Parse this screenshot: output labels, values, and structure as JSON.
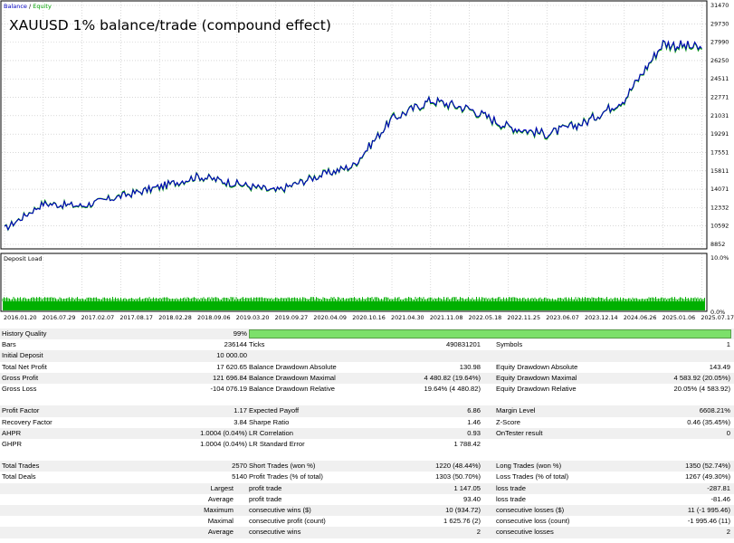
{
  "chart": {
    "legend_balance": "Balance",
    "legend_sep": " / ",
    "legend_equity": "Equity",
    "title": "XAUUSD 1% balance/trade (compound effect)",
    "y_ticks": [
      "31470",
      "29730",
      "27990",
      "26250",
      "24511",
      "22771",
      "21031",
      "19291",
      "17551",
      "15811",
      "14071",
      "12332",
      "10592",
      "8852"
    ],
    "deposit_title": "Deposit Load",
    "deposit_ticks": [
      "10.0%",
      "0.0%"
    ],
    "x_ticks": [
      "2016.01.20",
      "2016.07.29",
      "2017.02.07",
      "2017.08.17",
      "2018.02.28",
      "2018.09.06",
      "2019.03.20",
      "2019.09.27",
      "2020.04.09",
      "2020.10.16",
      "2021.04.30",
      "2021.11.08",
      "2022.05.18",
      "2022.11.25",
      "2023.06.07",
      "2023.12.14",
      "2024.06.26",
      "2025.01.06",
      "2025.07.17"
    ],
    "colors": {
      "balance": "#0000c0",
      "equity": "#00a000",
      "load": "#00b000",
      "grid": "#c0c0c0"
    }
  },
  "chart_data": {
    "type": "line",
    "ylim": [
      8852,
      31470
    ],
    "x": [
      "2016.01.20",
      "2016.07.29",
      "2017.02.07",
      "2017.08.17",
      "2018.02.28",
      "2018.09.06",
      "2019.03.20",
      "2019.09.27",
      "2020.04.09",
      "2020.10.16",
      "2021.04.30",
      "2021.11.08",
      "2022.05.18",
      "2022.11.25",
      "2023.06.07",
      "2023.12.14",
      "2024.06.26",
      "2025.01.06",
      "2025.07.17"
    ],
    "series": [
      {
        "name": "Balance",
        "values": [
          10300,
          12700,
          12500,
          13400,
          14300,
          15300,
          14600,
          13900,
          15200,
          16300,
          20700,
          22500,
          21700,
          20000,
          19300,
          20400,
          22600,
          27900,
          27400
        ]
      },
      {
        "name": "Equity",
        "values": [
          10300,
          12750,
          12450,
          13450,
          14250,
          15300,
          14550,
          13850,
          15250,
          16250,
          20750,
          22450,
          21650,
          19950,
          19250,
          20450,
          22550,
          27850,
          27300
        ]
      }
    ]
  },
  "report": {
    "history_quality_label": "History Quality",
    "history_quality_value": "99%",
    "bars_label": "Bars",
    "bars_value": "236144",
    "ticks_label": "Ticks",
    "ticks_value": "490831201",
    "symbols_label": "Symbols",
    "symbols_value": "1",
    "initial_deposit_label": "Initial Deposit",
    "initial_deposit_value": "10 000.00",
    "total_net_profit_label": "Total Net Profit",
    "total_net_profit_value": "17 620.65",
    "bal_dd_abs_label": "Balance Drawdown Absolute",
    "bal_dd_abs_value": "130.98",
    "eq_dd_abs_label": "Equity Drawdown Absolute",
    "eq_dd_abs_value": "143.49",
    "gross_profit_label": "Gross Profit",
    "gross_profit_value": "121 696.84",
    "bal_dd_max_label": "Balance Drawdown Maximal",
    "bal_dd_max_value": "4 480.82 (19.64%)",
    "eq_dd_max_label": "Equity Drawdown Maximal",
    "eq_dd_max_value": "4 583.92 (20.05%)",
    "gross_loss_label": "Gross Loss",
    "gross_loss_value": "-104 076.19",
    "bal_dd_rel_label": "Balance Drawdown Relative",
    "bal_dd_rel_value": "19.64% (4 480.82)",
    "eq_dd_rel_label": "Equity Drawdown Relative",
    "eq_dd_rel_value": "20.05% (4 583.92)",
    "profit_factor_label": "Profit Factor",
    "profit_factor_value": "1.17",
    "expected_payoff_label": "Expected Payoff",
    "expected_payoff_value": "6.86",
    "margin_level_label": "Margin Level",
    "margin_level_value": "6608.21%",
    "recovery_factor_label": "Recovery Factor",
    "recovery_factor_value": "3.84",
    "sharpe_label": "Sharpe Ratio",
    "sharpe_value": "1.46",
    "zscore_label": "Z-Score",
    "zscore_value": "0.46 (35.45%)",
    "ahpr_label": "AHPR",
    "ahpr_value": "1.0004 (0.04%)",
    "lr_corr_label": "LR Correlation",
    "lr_corr_value": "0.93",
    "ontester_label": "OnTester result",
    "ontester_value": "0",
    "ghpr_label": "GHPR",
    "ghpr_value": "1.0004 (0.04%)",
    "lr_err_label": "LR Standard Error",
    "lr_err_value": "1 788.42",
    "total_trades_label": "Total Trades",
    "total_trades_value": "2570",
    "short_trades_label": "Short Trades (won %)",
    "short_trades_value": "1220 (48.44%)",
    "long_trades_label": "Long Trades (won %)",
    "long_trades_value": "1350 (52.74%)",
    "total_deals_label": "Total Deals",
    "total_deals_value": "5140",
    "profit_trades_label": "Profit Trades (% of total)",
    "profit_trades_value": "1303 (50.70%)",
    "loss_trades_label": "Loss Trades (% of total)",
    "loss_trades_value": "1267 (49.30%)",
    "largest_label": "Largest",
    "largest_profit_label": "profit trade",
    "largest_profit_value": "1 147.05",
    "largest_loss_label": "loss trade",
    "largest_loss_value": "-287.81",
    "average_label": "Average",
    "average_profit_label": "profit trade",
    "average_profit_value": "93.40",
    "average_loss_label": "loss trade",
    "average_loss_value": "-81.46",
    "maximum_label": "Maximum",
    "max_cons_wins_label": "consecutive wins ($)",
    "max_cons_wins_value": "10 (934.72)",
    "max_cons_losses_label": "consecutive losses ($)",
    "max_cons_losses_value": "11 (-1 995.46)",
    "maximal_label": "Maximal",
    "maximal_cons_profit_label": "consecutive profit (count)",
    "maximal_cons_profit_value": "1 625.76 (2)",
    "maximal_cons_loss_label": "consecutive loss (count)",
    "maximal_cons_loss_value": "-1 995.46 (11)",
    "average2_label": "Average",
    "avg_cons_wins_label": "consecutive wins",
    "avg_cons_wins_value": "2",
    "avg_cons_losses_label": "consecutive losses",
    "avg_cons_losses_value": "2"
  }
}
